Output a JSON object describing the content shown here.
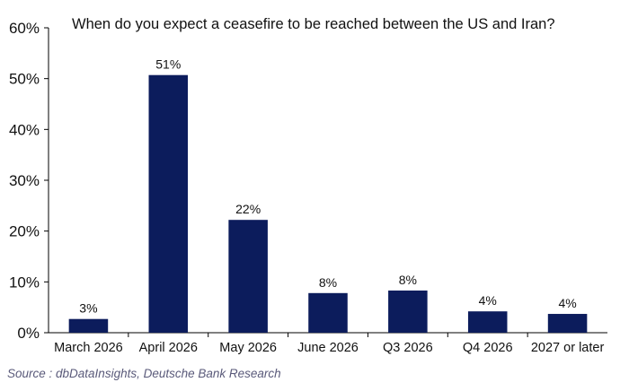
{
  "chart_data": {
    "type": "bar",
    "title": "When do you expect a ceasefire to be reached between the US and Iran?",
    "categories": [
      "March 2026",
      "April 2026",
      "May 2026",
      "June 2026",
      "Q3 2026",
      "Q4 2026",
      "2027 or later"
    ],
    "values": [
      2.7,
      50.7,
      22.2,
      7.8,
      8.3,
      4.2,
      3.7
    ],
    "value_labels": [
      "3%",
      "51%",
      "22%",
      "8%",
      "8%",
      "4%",
      "4%"
    ],
    "xlabel": "",
    "ylabel": "",
    "ylim": [
      0,
      60
    ],
    "yticks": [
      0,
      10,
      20,
      30,
      40,
      50,
      60
    ],
    "ytick_labels": [
      "0%",
      "10%",
      "20%",
      "30%",
      "40%",
      "50%",
      "60%"
    ],
    "grid": false,
    "legend": "none",
    "bar_color": "#0c1c5c"
  },
  "source": "Source : dbDataInsights, Deutsche Bank Research"
}
